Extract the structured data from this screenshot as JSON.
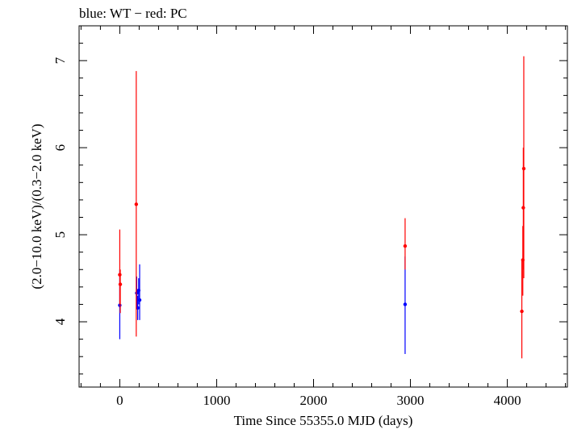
{
  "chart_data": {
    "type": "scatter",
    "title": "blue: WT − red: PC",
    "xlabel": "Time Since 55355.0 MJD (days)",
    "ylabel": "(2.0−10.0 keV)/(0.3−2.0 keV)",
    "xlim": [
      -420,
      4620
    ],
    "ylim": [
      3.25,
      7.4
    ],
    "xticks": [
      0,
      1000,
      2000,
      3000,
      4000
    ],
    "yticks": [
      4,
      5,
      6,
      7
    ],
    "grid": false,
    "series": [
      {
        "color": "#0000ff",
        "points": [
          {
            "x": 0,
            "y": 4.19,
            "ylo": 3.8,
            "yhi": 4.6
          },
          {
            "x": 175,
            "y": 4.33,
            "ylo": 4.15,
            "yhi": 4.52
          },
          {
            "x": 185,
            "y": 4.16,
            "ylo": 4.02,
            "yhi": 4.3
          },
          {
            "x": 195,
            "y": 4.36,
            "ylo": 4.2,
            "yhi": 4.5
          },
          {
            "x": 205,
            "y": 4.25,
            "ylo": 4.02,
            "yhi": 4.66
          },
          {
            "x": 2945,
            "y": 4.2,
            "ylo": 3.63,
            "yhi": 4.75
          }
        ]
      },
      {
        "color": "#ff0000",
        "points": [
          {
            "x": 0,
            "y": 4.54,
            "ylo": 4.2,
            "yhi": 5.06
          },
          {
            "x": 5,
            "y": 4.43,
            "ylo": 4.1,
            "yhi": 4.6
          },
          {
            "x": 170,
            "y": 5.35,
            "ylo": 3.83,
            "yhi": 6.88
          },
          {
            "x": 2945,
            "y": 4.87,
            "ylo": 4.6,
            "yhi": 5.19
          },
          {
            "x": 4150,
            "y": 4.12,
            "ylo": 3.58,
            "yhi": 4.7
          },
          {
            "x": 4160,
            "y": 4.71,
            "ylo": 4.3,
            "yhi": 5.1
          },
          {
            "x": 4165,
            "y": 5.31,
            "ylo": 4.6,
            "yhi": 6.0
          },
          {
            "x": 4170,
            "y": 5.76,
            "ylo": 4.5,
            "yhi": 7.05
          }
        ]
      }
    ]
  }
}
